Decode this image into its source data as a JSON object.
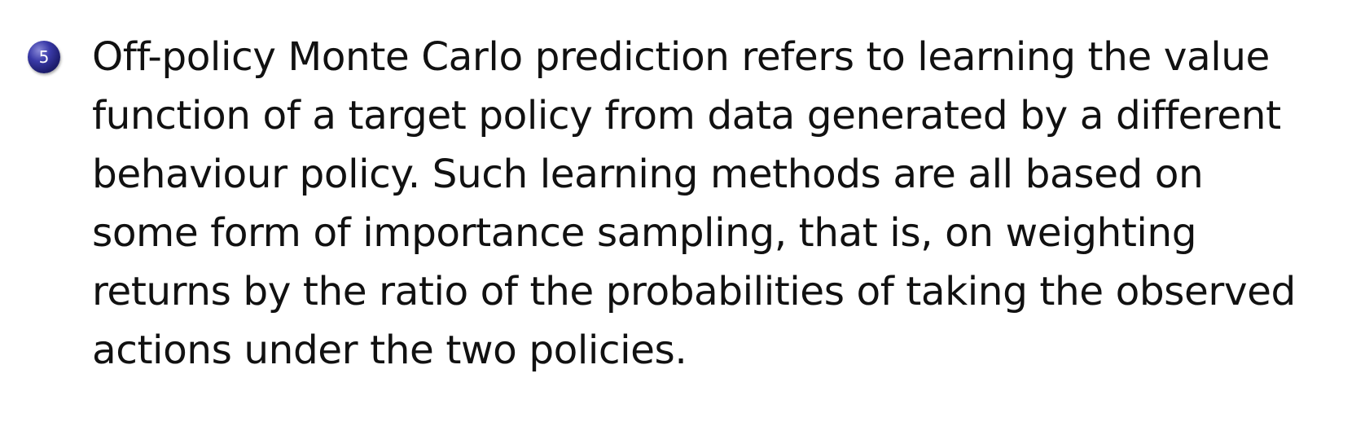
{
  "item": {
    "number": "5",
    "lines": [
      "Off-policy Monte Carlo prediction refers to learning the value",
      "function of a target policy from data generated by a different",
      "behaviour policy. Such learning methods are all based on",
      "some form of importance sampling, that is, on weighting",
      "returns by the ratio of the probabilities of taking the observed",
      "actions under the two policies."
    ]
  },
  "colors": {
    "bullet": "#2a2a8c",
    "text": "#111111",
    "background": "#ffffff"
  }
}
